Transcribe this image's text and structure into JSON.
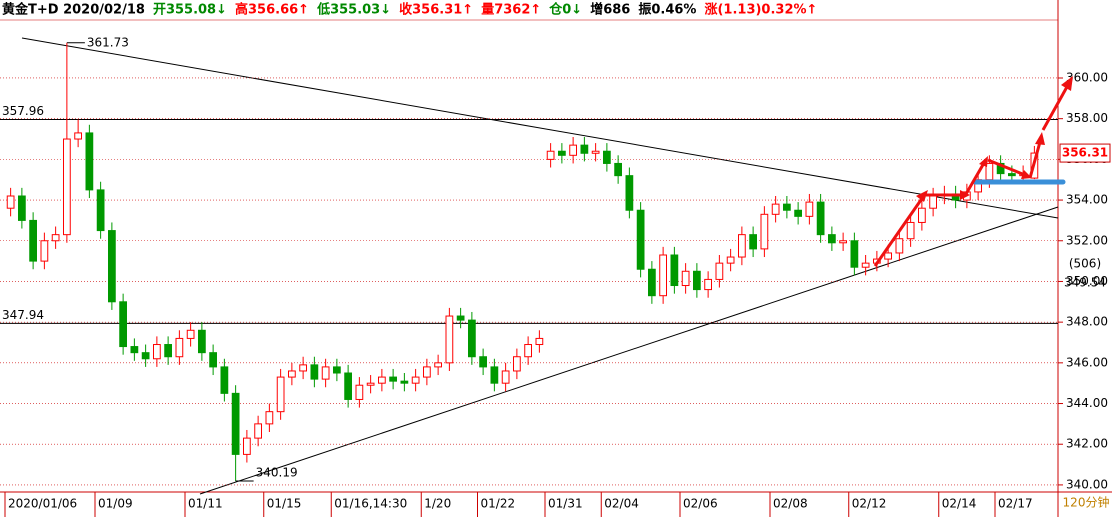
{
  "chart_data": {
    "type": "candlestick",
    "header": [
      {
        "text": "黄金T+D 2020/02/18",
        "color": "#000000"
      },
      {
        "text": "开355.08↓",
        "color": "#008800"
      },
      {
        "text": "高356.66↑",
        "color": "#ff0000"
      },
      {
        "text": "低355.03↓",
        "color": "#008800"
      },
      {
        "text": "收356.31↑",
        "color": "#ff0000"
      },
      {
        "text": "量7362↑",
        "color": "#ff0000"
      },
      {
        "text": "仓0↓",
        "color": "#008800"
      },
      {
        "text": "增686",
        "color": "#000000"
      },
      {
        "text": "振0.46%",
        "color": "#000000"
      },
      {
        "text": "涨(1.13)0.32%↑",
        "color": "#ff0000"
      }
    ],
    "period": "120分钟",
    "info": [
      "(506)",
      "349.54"
    ],
    "up_color": "#ff0000",
    "down_color": "#009900",
    "ylim": [
      339.75,
      362.85
    ],
    "yticks": [
      {
        "value": 340,
        "label": "340.00"
      },
      {
        "value": 342,
        "label": "342.00"
      },
      {
        "value": 344,
        "label": "344.00"
      },
      {
        "value": 346,
        "label": "346.00"
      },
      {
        "value": 348,
        "label": "348.00"
      },
      {
        "value": 350,
        "label": "350.00"
      },
      {
        "value": 352,
        "label": "352.00"
      },
      {
        "value": 354,
        "label": "354.00"
      },
      {
        "value": 356,
        "label": "356.00"
      },
      {
        "value": 358,
        "label": "358.00"
      },
      {
        "value": 360,
        "label": "360.00"
      }
    ],
    "levels": [
      357.96,
      347.94
    ],
    "categories": [
      "2020/01/06",
      null,
      null,
      null,
      null,
      null,
      null,
      null,
      "01/09",
      null,
      null,
      null,
      null,
      null,
      null,
      null,
      "01/11",
      null,
      null,
      null,
      null,
      null,
      null,
      "01/15",
      null,
      null,
      null,
      null,
      null,
      "01/16,14:30",
      null,
      null,
      null,
      null,
      null,
      null,
      null,
      "1/20",
      null,
      null,
      null,
      null,
      "01/22",
      null,
      null,
      null,
      null,
      null,
      "01/31",
      null,
      null,
      null,
      null,
      "02/04",
      null,
      null,
      null,
      null,
      null,
      null,
      "02/06",
      null,
      null,
      null,
      null,
      null,
      null,
      null,
      "02/08",
      null,
      null,
      null,
      null,
      null,
      null,
      "02/12",
      null,
      null,
      null,
      null,
      null,
      null,
      null,
      "02/14",
      null,
      null,
      null,
      null,
      "02/17",
      null,
      null,
      null
    ],
    "open": [
      353.6,
      354.2,
      353.0,
      351.0,
      352.0,
      352.3,
      357.0,
      357.3,
      354.5,
      352.5,
      349.0,
      346.8,
      346.5,
      346.2,
      346.9,
      346.3,
      347.2,
      347.6,
      346.5,
      345.8,
      344.5,
      341.5,
      342.3,
      343.0,
      343.6,
      345.3,
      345.6,
      345.9,
      345.2,
      345.8,
      345.5,
      344.2,
      344.9,
      345.0,
      345.3,
      345.1,
      345.0,
      345.3,
      345.8,
      346.0,
      348.3,
      348.1,
      346.3,
      345.8,
      345.0,
      345.6,
      346.3,
      346.9,
      356.0,
      356.4,
      356.2,
      356.7,
      356.3,
      356.4,
      355.8,
      355.2,
      353.5,
      350.6,
      349.3,
      351.3,
      349.8,
      350.5,
      349.6,
      350.1,
      350.9,
      351.2,
      352.3,
      351.6,
      353.3,
      353.8,
      353.5,
      353.2,
      353.9,
      352.3,
      351.9,
      352.0,
      350.7,
      350.9,
      351.1,
      351.4,
      352.1,
      352.9,
      353.6,
      354.2,
      354.3,
      354.0,
      354.4,
      355.0,
      355.8,
      355.3,
      355.2,
      355.08
    ],
    "high": [
      354.6,
      354.6,
      353.4,
      352.4,
      352.7,
      361.73,
      357.96,
      357.7,
      354.9,
      352.9,
      349.4,
      347.2,
      346.9,
      347.3,
      347.3,
      347.6,
      348.0,
      348.0,
      346.9,
      346.2,
      344.9,
      342.7,
      343.4,
      344.0,
      345.7,
      346.0,
      346.3,
      346.3,
      346.2,
      346.2,
      345.9,
      345.3,
      345.4,
      345.7,
      345.7,
      345.5,
      345.7,
      346.2,
      346.4,
      348.7,
      348.7,
      348.5,
      346.7,
      346.2,
      346.0,
      346.7,
      347.3,
      347.6,
      356.8,
      356.8,
      357.1,
      357.1,
      356.8,
      356.8,
      356.2,
      355.6,
      353.9,
      351.0,
      351.7,
      351.7,
      350.9,
      350.9,
      350.5,
      351.3,
      351.6,
      352.7,
      352.7,
      353.7,
      354.2,
      354.2,
      353.9,
      354.3,
      354.3,
      352.7,
      352.4,
      352.4,
      351.3,
      351.5,
      351.8,
      352.5,
      353.3,
      354.0,
      354.6,
      354.7,
      354.7,
      354.8,
      355.4,
      356.2,
      356.2,
      355.7,
      355.7,
      356.66
    ],
    "low": [
      353.2,
      352.6,
      350.6,
      350.6,
      351.6,
      351.9,
      356.6,
      354.1,
      352.1,
      348.6,
      346.4,
      346.1,
      345.8,
      345.8,
      345.9,
      345.9,
      346.8,
      346.1,
      345.4,
      344.1,
      340.19,
      341.1,
      341.9,
      342.6,
      343.2,
      344.9,
      345.2,
      344.8,
      344.8,
      345.1,
      343.8,
      343.8,
      344.5,
      344.6,
      344.7,
      344.6,
      344.6,
      344.9,
      345.4,
      345.6,
      347.7,
      345.9,
      345.4,
      344.6,
      344.6,
      345.2,
      345.9,
      346.5,
      355.6,
      355.8,
      355.8,
      355.9,
      355.9,
      355.4,
      354.8,
      353.1,
      350.2,
      348.9,
      348.9,
      349.4,
      349.4,
      349.2,
      349.2,
      349.7,
      350.5,
      350.8,
      351.2,
      351.2,
      352.9,
      353.1,
      352.8,
      352.8,
      351.9,
      351.5,
      351.5,
      350.3,
      350.3,
      350.5,
      350.7,
      351.0,
      351.7,
      352.5,
      353.2,
      353.8,
      353.6,
      353.6,
      354.0,
      354.6,
      354.9,
      354.8,
      354.8,
      355.03
    ],
    "close": [
      354.2,
      353.0,
      351.0,
      352.0,
      352.3,
      357.0,
      357.3,
      354.5,
      352.5,
      349.0,
      346.8,
      346.5,
      346.2,
      346.9,
      346.3,
      347.2,
      347.6,
      346.5,
      345.8,
      344.5,
      341.5,
      342.3,
      343.0,
      343.6,
      345.3,
      345.6,
      345.9,
      345.2,
      345.8,
      345.5,
      344.2,
      344.9,
      345.0,
      345.3,
      345.1,
      345.0,
      345.3,
      345.8,
      346.0,
      348.3,
      348.1,
      346.3,
      345.8,
      345.0,
      345.6,
      346.3,
      346.9,
      347.2,
      356.4,
      356.2,
      356.7,
      356.3,
      356.4,
      355.8,
      355.2,
      353.5,
      350.6,
      349.3,
      351.3,
      349.8,
      350.5,
      349.6,
      350.1,
      350.9,
      351.2,
      352.3,
      351.6,
      353.3,
      353.8,
      353.5,
      353.2,
      353.9,
      352.3,
      351.9,
      352.0,
      350.7,
      350.9,
      351.1,
      351.4,
      352.1,
      352.9,
      353.6,
      354.2,
      354.3,
      354.0,
      354.4,
      355.0,
      355.8,
      355.3,
      355.2,
      355.3,
      356.31
    ],
    "grid": true
  }
}
